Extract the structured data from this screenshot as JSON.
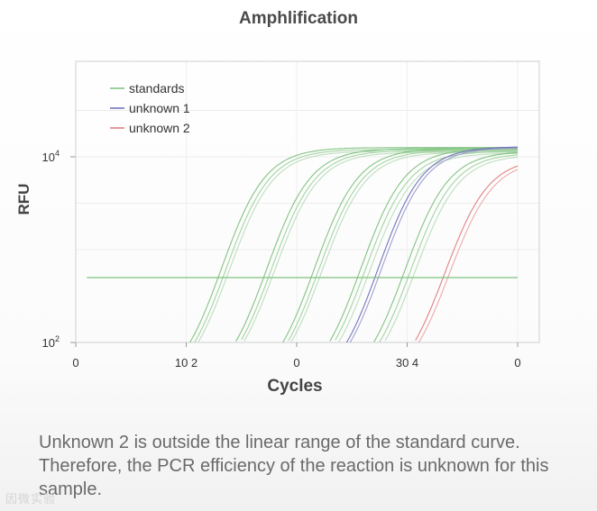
{
  "page": {
    "caption": "Unknown 2 is outside the linear range of the standard curve. Therefore, the PCR efficiency of the reaction is unknown for this sample.",
    "watermark": "因微实验"
  },
  "chart_data": {
    "type": "line",
    "title": "Amphlification",
    "xlabel": "Cycles",
    "ylabel": "RFU",
    "xlim": [
      0,
      40
    ],
    "ylim_log10": [
      2,
      5
    ],
    "x_tick_labels": [
      "0",
      "10 2",
      "0",
      "30 4",
      "0"
    ],
    "x_tick_values": [
      0,
      10,
      20,
      30,
      40
    ],
    "y_ticks": [
      {
        "value": 100,
        "base": "10",
        "exp": "2"
      },
      {
        "value": 10000,
        "base": "10",
        "exp": "4"
      }
    ],
    "threshold": {
      "value": 500,
      "x_range": [
        1,
        40
      ]
    },
    "legend": [
      {
        "label": "standards",
        "color": "#7cc17c"
      },
      {
        "label": "unknown 1",
        "color": "#6f6fb8"
      },
      {
        "label": "unknown 2",
        "color": "#e07b7b"
      }
    ],
    "plateau_log10": 4.12,
    "baseline_log10": 1.5,
    "series": [
      {
        "name": "standards",
        "group": "standards",
        "midpoint_cycle": 13.2,
        "plateau_log10": 4.1,
        "color": "#7cc17c"
      },
      {
        "name": "standards",
        "group": "standards",
        "midpoint_cycle": 13.6,
        "plateau_log10": 4.08,
        "color": "#9fd19f"
      },
      {
        "name": "standards",
        "group": "standards",
        "midpoint_cycle": 13.9,
        "plateau_log10": 4.06,
        "color": "#b9dcb9"
      },
      {
        "name": "standards",
        "group": "standards",
        "midpoint_cycle": 17.3,
        "plateau_log10": 4.09,
        "color": "#7cc17c"
      },
      {
        "name": "standards",
        "group": "standards",
        "midpoint_cycle": 17.7,
        "plateau_log10": 4.07,
        "color": "#9fd19f"
      },
      {
        "name": "standards",
        "group": "standards",
        "midpoint_cycle": 18.0,
        "plateau_log10": 4.05,
        "color": "#b9dcb9"
      },
      {
        "name": "standards",
        "group": "standards",
        "midpoint_cycle": 21.6,
        "plateau_log10": 4.09,
        "color": "#7cc17c"
      },
      {
        "name": "standards",
        "group": "standards",
        "midpoint_cycle": 22.0,
        "plateau_log10": 4.07,
        "color": "#9fd19f"
      },
      {
        "name": "standards",
        "group": "standards",
        "midpoint_cycle": 22.3,
        "plateau_log10": 4.05,
        "color": "#b9dcb9"
      },
      {
        "name": "standards",
        "group": "standards",
        "midpoint_cycle": 25.8,
        "plateau_log10": 4.09,
        "color": "#7cc17c"
      },
      {
        "name": "standards",
        "group": "standards",
        "midpoint_cycle": 26.2,
        "plateau_log10": 4.06,
        "color": "#9fd19f"
      },
      {
        "name": "standards",
        "group": "standards",
        "midpoint_cycle": 26.6,
        "plateau_log10": 4.04,
        "color": "#b9dcb9"
      },
      {
        "name": "standards",
        "group": "standards",
        "midpoint_cycle": 29.8,
        "plateau_log10": 4.06,
        "color": "#7cc17c"
      },
      {
        "name": "standards",
        "group": "standards",
        "midpoint_cycle": 30.3,
        "plateau_log10": 4.04,
        "color": "#9fd19f"
      },
      {
        "name": "standards",
        "group": "standards",
        "midpoint_cycle": 30.7,
        "plateau_log10": 4.02,
        "color": "#b9dcb9"
      },
      {
        "name": "unknown 1",
        "group": "unknown 1",
        "midpoint_cycle": 27.4,
        "plateau_log10": 4.11,
        "color": "#6f6fb8"
      },
      {
        "name": "unknown 1",
        "group": "unknown 1",
        "midpoint_cycle": 27.7,
        "plateau_log10": 4.1,
        "color": "#9a9ad0"
      },
      {
        "name": "unknown 2",
        "group": "unknown 2",
        "midpoint_cycle": 33.4,
        "plateau_log10": 3.99,
        "color": "#e07b7b"
      },
      {
        "name": "unknown 2",
        "group": "unknown 2",
        "midpoint_cycle": 33.8,
        "plateau_log10": 3.97,
        "color": "#eba5a5"
      }
    ]
  }
}
